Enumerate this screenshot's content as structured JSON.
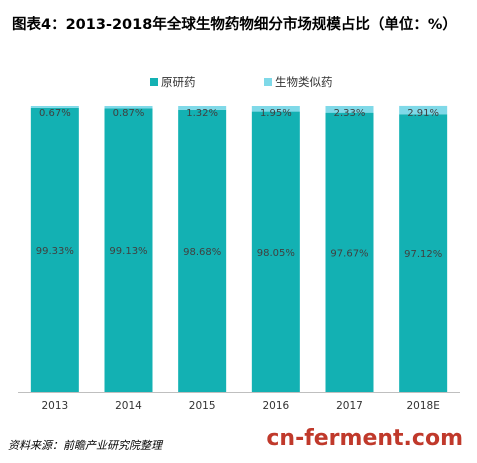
{
  "title": "图表4：2013-2018年全球生物药物细分市场规模占比（单位：%）",
  "source": "资料来源：前瞻产业研究院整理",
  "watermark": "cn-ferment.com",
  "chart_data": {
    "type": "bar",
    "stacked": true,
    "categories": [
      "2013",
      "2014",
      "2015",
      "2016",
      "2017",
      "2018E"
    ],
    "series": [
      {
        "name": "原研药",
        "values": [
          99.33,
          99.13,
          98.68,
          98.05,
          97.67,
          97.12
        ],
        "labels": [
          "99.33%",
          "99.13%",
          "98.68%",
          "98.05%",
          "97.67%",
          "97.12%"
        ],
        "color": "#13b1b3"
      },
      {
        "name": "生物类似药",
        "values": [
          0.67,
          0.87,
          1.32,
          1.95,
          2.33,
          2.91
        ],
        "labels": [
          "0.67%",
          "0.87%",
          "1.32%",
          "1.95%",
          "2.33%",
          "2.91%"
        ],
        "color": "#7fd9e8"
      }
    ],
    "ylim": [
      0,
      100
    ],
    "legend": "top-center",
    "grid": false
  }
}
